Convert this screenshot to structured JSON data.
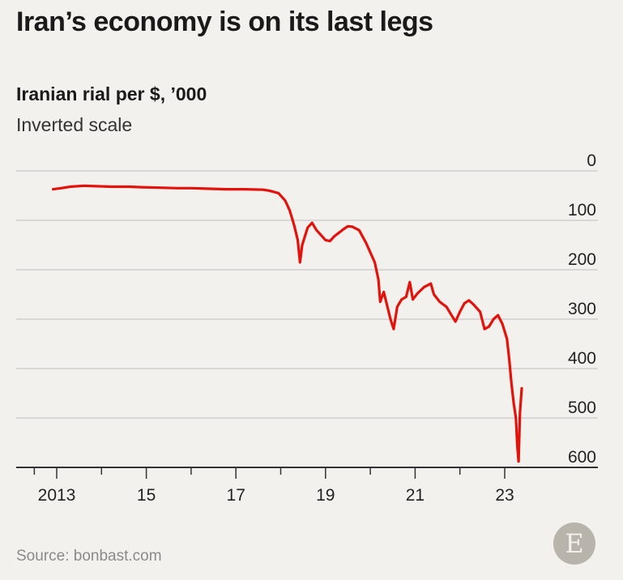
{
  "header": {
    "title": "Iran’s economy is on its last legs",
    "subtitle": "Iranian rial per $, ’000",
    "note": "Inverted scale"
  },
  "footer": {
    "source": "Source: bonbast.com",
    "logo_letter": "E"
  },
  "colors": {
    "line": "#e3120b",
    "grid": "#c8c8c8",
    "axis": "#333333",
    "background": "#f3f1ed"
  },
  "chart_data": {
    "type": "line",
    "title": "Iran’s economy is on its last legs",
    "ylabel": "Iranian rial per $, ’000",
    "xlabel": "",
    "y_inverted": true,
    "ylim": [
      0,
      600
    ],
    "yticks": [
      0,
      100,
      200,
      300,
      400,
      500,
      600
    ],
    "ytick_labels": [
      "0",
      "100",
      "200",
      "300",
      "400",
      "500",
      "600"
    ],
    "xlim": [
      2013,
      2024
    ],
    "xticks_major": [
      2013,
      2015,
      2017,
      2019,
      2021,
      2023
    ],
    "xtick_labels": [
      "2013",
      "15",
      "17",
      "19",
      "21",
      "23"
    ],
    "xticks_minor": [
      2014,
      2016,
      2018,
      2020,
      2022
    ],
    "grid": true,
    "series": [
      {
        "values": [
          [
            2012.92,
            37
          ],
          [
            2013.1,
            35
          ],
          [
            2013.3,
            32
          ],
          [
            2013.6,
            30
          ],
          [
            2013.9,
            31
          ],
          [
            2014.2,
            32
          ],
          [
            2014.6,
            32
          ],
          [
            2014.9,
            33
          ],
          [
            2015.3,
            34
          ],
          [
            2015.7,
            35
          ],
          [
            2016.0,
            35
          ],
          [
            2016.4,
            36
          ],
          [
            2016.8,
            37
          ],
          [
            2017.2,
            37
          ],
          [
            2017.6,
            38
          ],
          [
            2017.75,
            40
          ],
          [
            2017.95,
            45
          ],
          [
            2018.1,
            60
          ],
          [
            2018.2,
            80
          ],
          [
            2018.3,
            110
          ],
          [
            2018.38,
            140
          ],
          [
            2018.43,
            185
          ],
          [
            2018.48,
            150
          ],
          [
            2018.6,
            115
          ],
          [
            2018.7,
            105
          ],
          [
            2018.8,
            120
          ],
          [
            2018.9,
            130
          ],
          [
            2019.0,
            140
          ],
          [
            2019.1,
            142
          ],
          [
            2019.2,
            132
          ],
          [
            2019.3,
            125
          ],
          [
            2019.4,
            118
          ],
          [
            2019.5,
            112
          ],
          [
            2019.6,
            113
          ],
          [
            2019.75,
            120
          ],
          [
            2019.9,
            145
          ],
          [
            2020.0,
            165
          ],
          [
            2020.1,
            185
          ],
          [
            2020.18,
            220
          ],
          [
            2020.22,
            265
          ],
          [
            2020.3,
            245
          ],
          [
            2020.45,
            300
          ],
          [
            2020.52,
            320
          ],
          [
            2020.6,
            275
          ],
          [
            2020.7,
            260
          ],
          [
            2020.8,
            255
          ],
          [
            2020.88,
            225
          ],
          [
            2020.95,
            260
          ],
          [
            2021.05,
            248
          ],
          [
            2021.2,
            235
          ],
          [
            2021.35,
            228
          ],
          [
            2021.42,
            250
          ],
          [
            2021.55,
            265
          ],
          [
            2021.7,
            275
          ],
          [
            2021.8,
            290
          ],
          [
            2021.9,
            305
          ],
          [
            2022.0,
            285
          ],
          [
            2022.1,
            268
          ],
          [
            2022.2,
            262
          ],
          [
            2022.3,
            270
          ],
          [
            2022.45,
            285
          ],
          [
            2022.55,
            320
          ],
          [
            2022.65,
            315
          ],
          [
            2022.75,
            300
          ],
          [
            2022.85,
            292
          ],
          [
            2022.95,
            310
          ],
          [
            2023.05,
            340
          ],
          [
            2023.1,
            380
          ],
          [
            2023.15,
            430
          ],
          [
            2023.2,
            470
          ],
          [
            2023.25,
            500
          ],
          [
            2023.28,
            555
          ],
          [
            2023.31,
            588
          ],
          [
            2023.34,
            490
          ],
          [
            2023.38,
            440
          ]
        ]
      }
    ]
  }
}
